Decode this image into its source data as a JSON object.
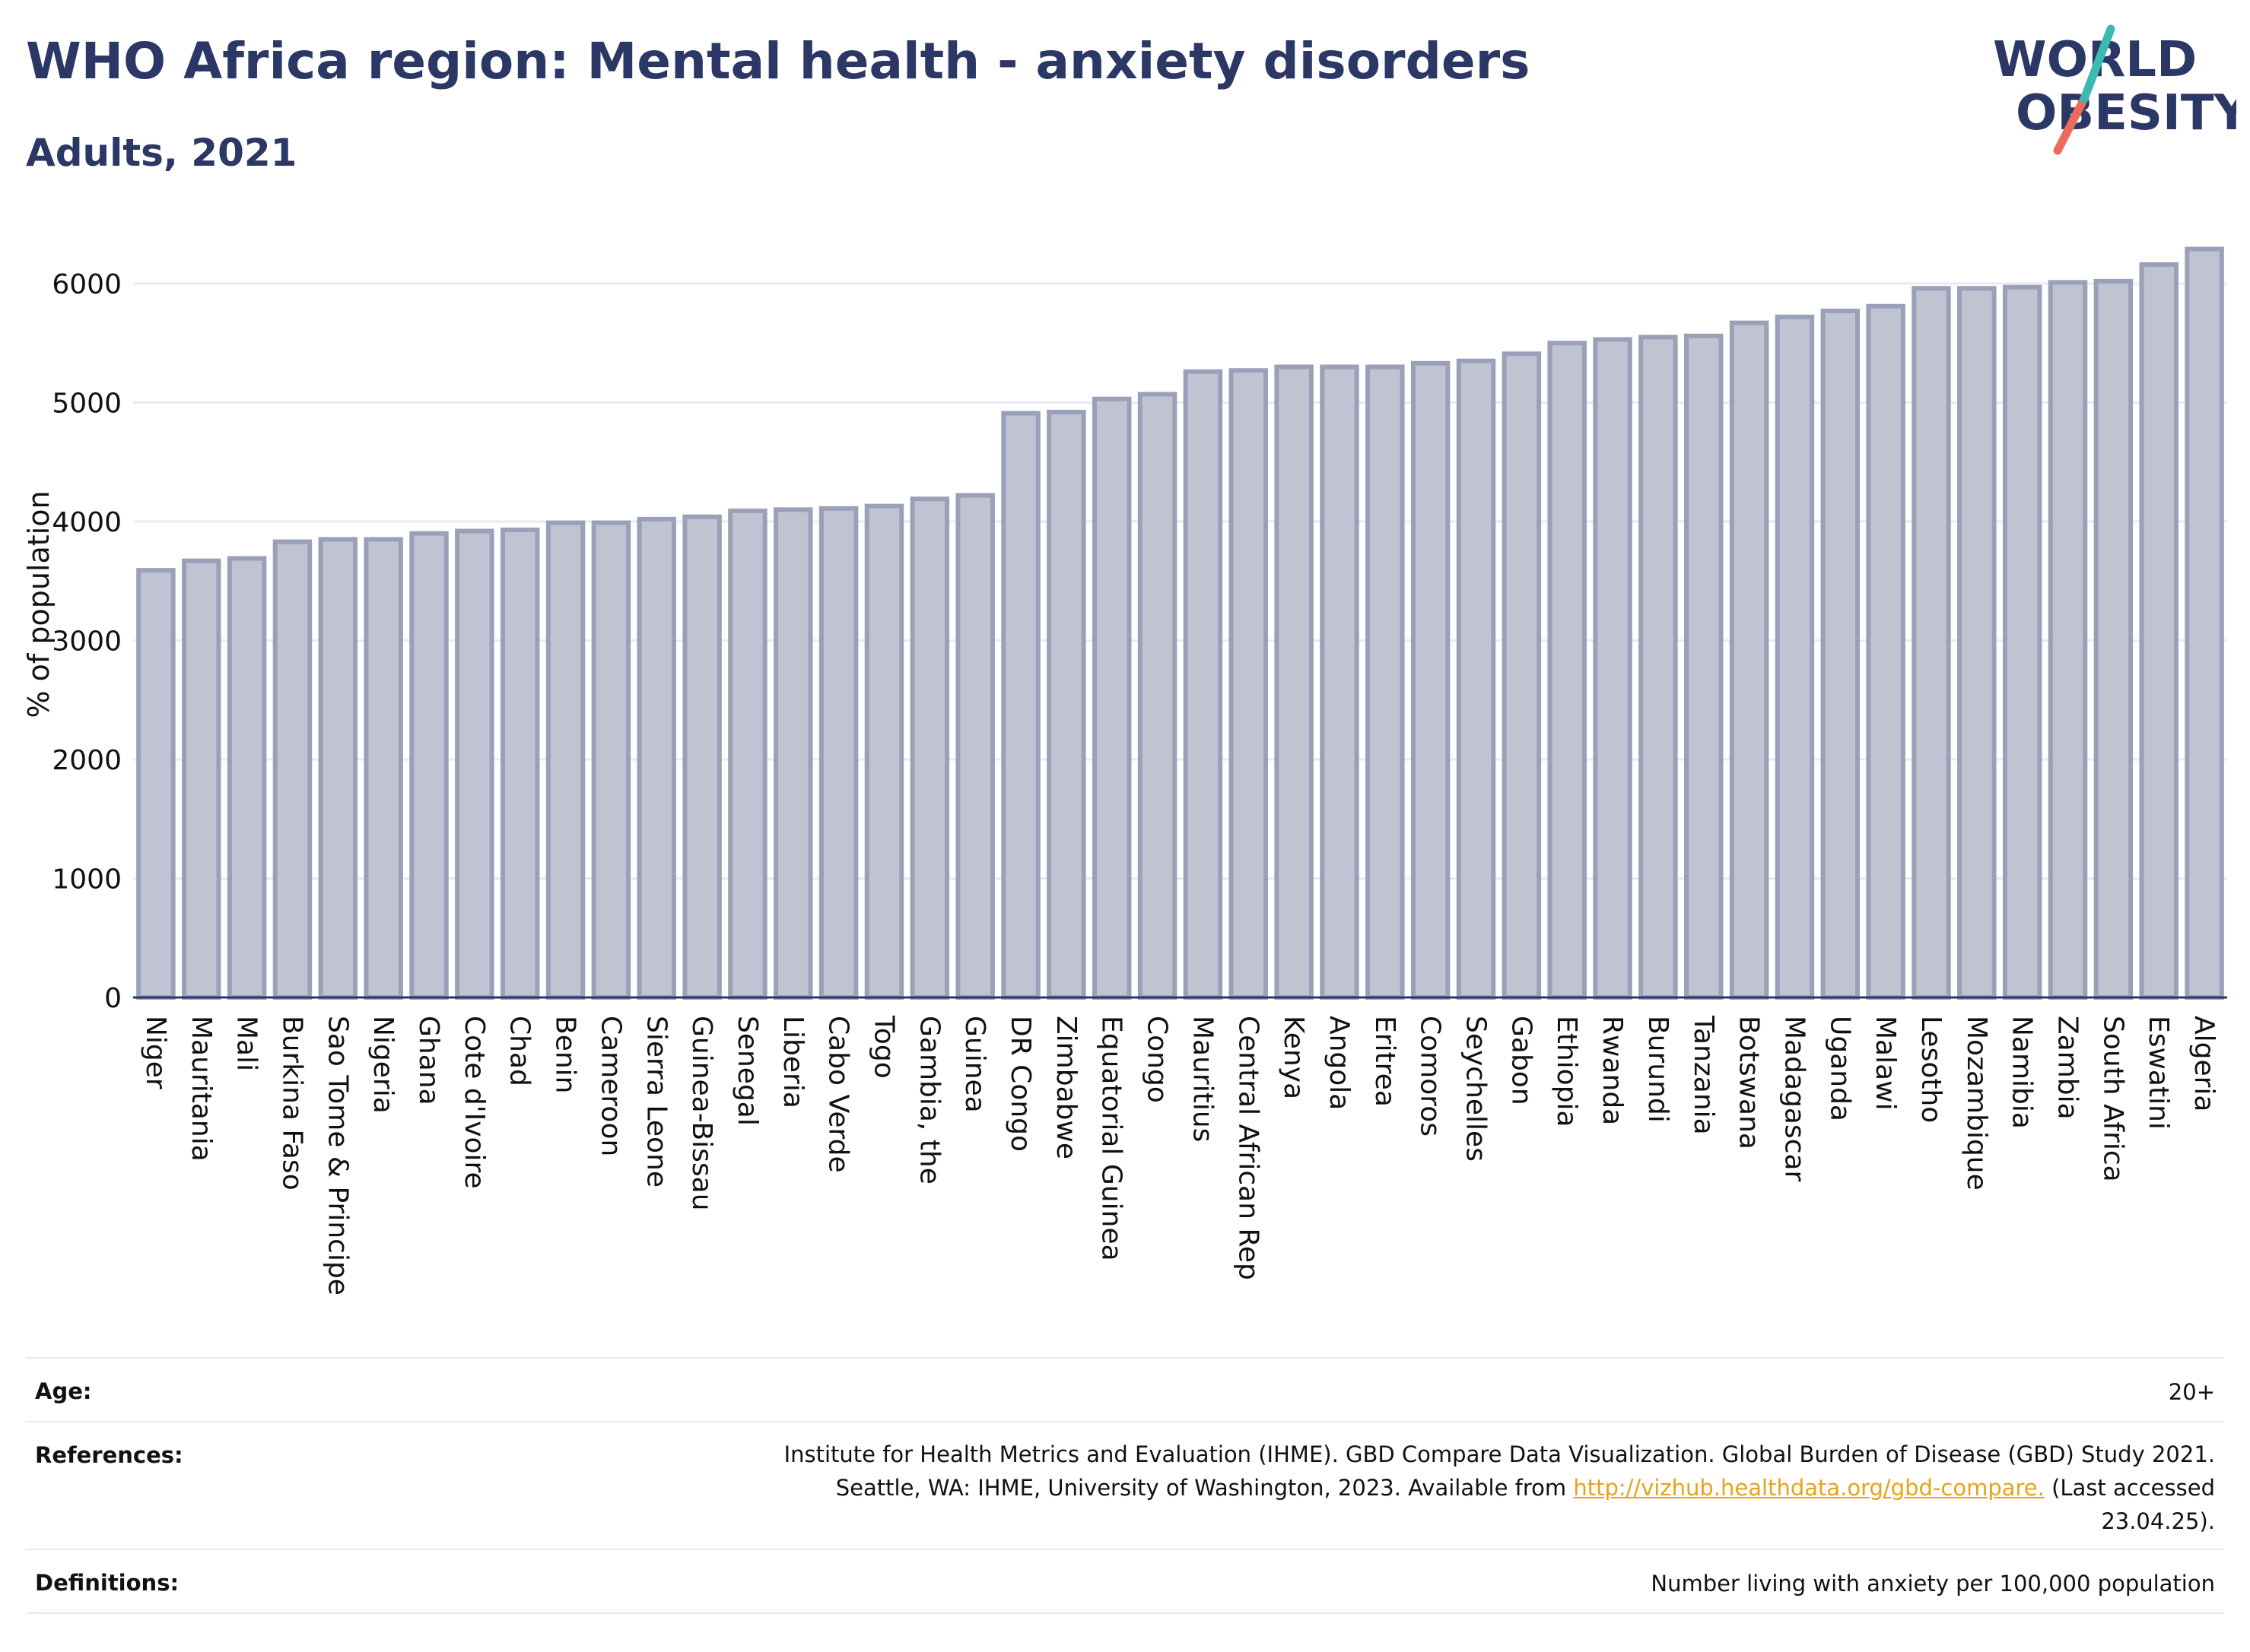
{
  "header": {
    "title": "WHO Africa region: Mental health - anxiety disorders",
    "subtitle": "Adults, 2021",
    "logo_line1": "WORLD",
    "logo_line2": "OBESITY"
  },
  "chart_data": {
    "type": "bar",
    "ylabel": "% of population",
    "xlabel": "",
    "ylim": [
      0,
      6350
    ],
    "yticks": [
      0,
      1000,
      2000,
      3000,
      4000,
      5000,
      6000
    ],
    "grid": true,
    "categories": [
      "Niger",
      "Mauritania",
      "Mali",
      "Burkina Faso",
      "Sao Tome & Principe",
      "Nigeria",
      "Ghana",
      "Cote d'Ivoire",
      "Chad",
      "Benin",
      "Cameroon",
      "Sierra Leone",
      "Guinea-Bissau",
      "Senegal",
      "Liberia",
      "Cabo Verde",
      "Togo",
      "Gambia, the",
      "Guinea",
      "DR Congo",
      "Zimbabwe",
      "Equatorial Guinea",
      "Congo",
      "Mauritius",
      "Central African Rep",
      "Kenya",
      "Angola",
      "Eritrea",
      "Comoros",
      "Seychelles",
      "Gabon",
      "Ethiopia",
      "Rwanda",
      "Burundi",
      "Tanzania",
      "Botswana",
      "Madagascar",
      "Uganda",
      "Malawi",
      "Lesotho",
      "Mozambique",
      "Namibia",
      "Zambia",
      "South Africa",
      "Eswatini",
      "Algeria"
    ],
    "values": [
      3590,
      3670,
      3690,
      3830,
      3850,
      3850,
      3900,
      3920,
      3930,
      3990,
      3990,
      4020,
      4040,
      4090,
      4100,
      4110,
      4130,
      4190,
      4220,
      4910,
      4920,
      5030,
      5070,
      5260,
      5270,
      5300,
      5300,
      5300,
      5330,
      5350,
      5410,
      5500,
      5530,
      5550,
      5560,
      5670,
      5720,
      5770,
      5810,
      5960,
      5960,
      5970,
      6010,
      6020,
      6160,
      6290
    ]
  },
  "info": {
    "age_label": "Age:",
    "age_value": "20+",
    "references_label": "References:",
    "references_line1": "Institute for Health Metrics and Evaluation (IHME). GBD Compare Data Visualization. Global Burden of Disease (GBD) Study 2021.",
    "references_line2_pre": "Seattle, WA: IHME, University of Washington, 2023. Available from ",
    "references_link": "http://vizhub.healthdata.org/gbd-compare.",
    "references_line2_post": " (Last accessed",
    "references_line3": "23.04.25).",
    "definitions_label": "Definitions:",
    "definitions_value": "Number living with anxiety per 100,000 population"
  },
  "colors": {
    "bar_fill": "#bfc3d2",
    "bar_stroke": "#9aa0b8",
    "title": "#2b3765",
    "logo_teal": "#3cb9b0",
    "logo_coral": "#ec6b5b",
    "link": "#e8a317"
  }
}
